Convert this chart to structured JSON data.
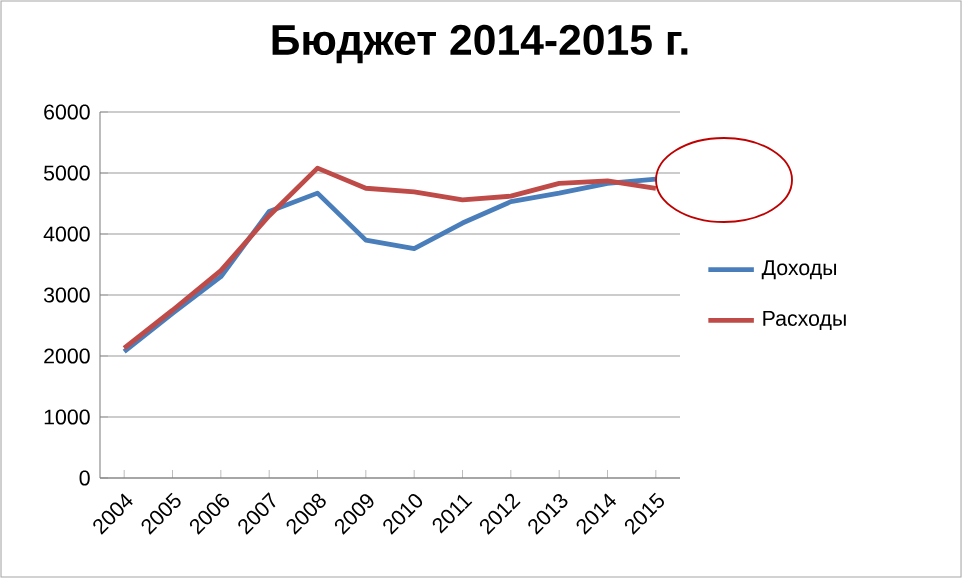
{
  "chart_data": {
    "type": "line",
    "title": "Бюджет 2014-2015 г.",
    "categories": [
      "2004",
      "2005",
      "2006",
      "2007",
      "2008",
      "2009",
      "2010",
      "2011",
      "2012",
      "2013",
      "2014",
      "2015"
    ],
    "series": [
      {
        "name": "Доходы",
        "color": "#4a7ebb",
        "values": [
          2070,
          2700,
          3300,
          4370,
          4670,
          3900,
          3760,
          4180,
          4530,
          4670,
          4830,
          4900
        ]
      },
      {
        "name": "Расходы",
        "color": "#be4b48",
        "values": [
          2130,
          2750,
          3400,
          4300,
          5080,
          4750,
          4690,
          4560,
          4620,
          4830,
          4870,
          4750
        ]
      }
    ],
    "ylim": [
      0,
      6000
    ],
    "yticks": [
      0,
      1000,
      2000,
      3000,
      4000,
      5000,
      6000
    ],
    "grid": "y",
    "legend": "right",
    "marker": "none",
    "line_style": "solid"
  }
}
